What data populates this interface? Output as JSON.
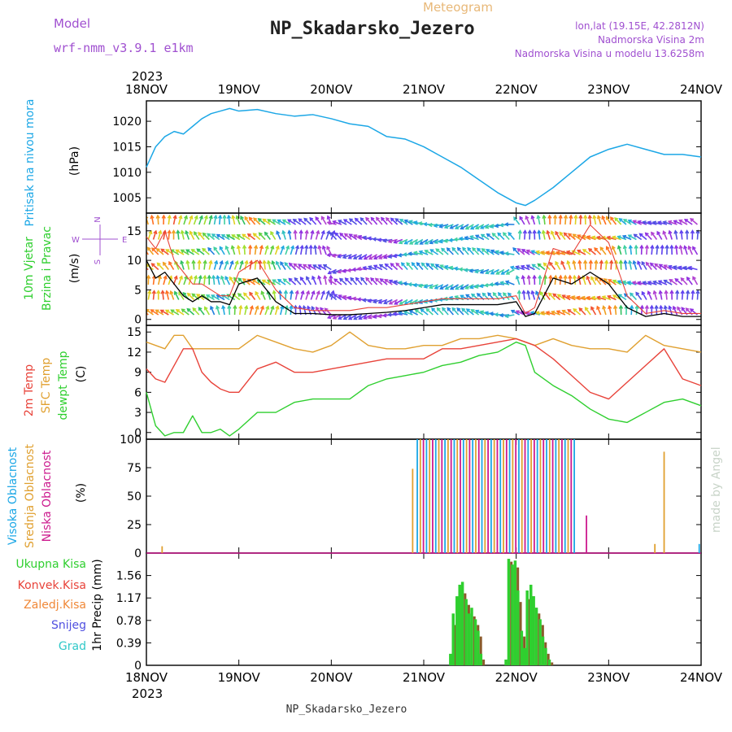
{
  "header": {
    "model_label": "Model",
    "model_name": "wrf-nmm_v3.9.1 e1km",
    "meteogram_label": "Meteogram",
    "station": "NP_Skadarsko_Jezero",
    "lonlat": "lon,lat (19.15E, 42.2812N)",
    "elev": "Nadmorska Visina 2m",
    "elev_model": "Nadmorska Visina u modelu 13.6258m",
    "credit": "made by Angel",
    "footer_station": "NP_Skadarsko_Jezero",
    "year_top": "2023",
    "year_bottom": "2023"
  },
  "colors": {
    "pressure": "#1ca7e6",
    "temp2m": "#e8433a",
    "sfc": "#e0a030",
    "dew": "#2fcf2f",
    "high_cloud": "#1ca7e6",
    "mid_cloud": "#e0a030",
    "low_cloud": "#cc1a8e",
    "total_precip": "#2fcf2f",
    "conv_precip": "#e8433a",
    "wind_speed": "#000000",
    "wind_gust": "#e8433a",
    "axis": "#000000"
  },
  "chart_data": [
    {
      "type": "line",
      "panel": "pressure",
      "ylabel_lines": [
        "Pritisak na nivou mora"
      ],
      "unit": "(hPa)",
      "x_ticks": [
        "18NOV",
        "19NOV",
        "20NOV",
        "21NOV",
        "22NOV",
        "23NOV",
        "24NOV"
      ],
      "ylim": [
        1002,
        1024
      ],
      "yticks": [
        1005,
        1010,
        1015,
        1020
      ],
      "x_days": [
        0,
        0.1,
        0.2,
        0.3,
        0.4,
        0.5,
        0.6,
        0.7,
        0.8,
        0.9,
        1.0,
        1.2,
        1.4,
        1.6,
        1.8,
        2.0,
        2.2,
        2.4,
        2.6,
        2.8,
        3.0,
        3.2,
        3.4,
        3.6,
        3.8,
        4.0,
        4.1,
        4.2,
        4.4,
        4.6,
        4.8,
        5.0,
        5.2,
        5.4,
        5.6,
        5.8,
        6.0
      ],
      "series": [
        {
          "values": [
            1011,
            1015,
            1017,
            1018,
            1017.5,
            1019,
            1020.5,
            1021.5,
            1022,
            1022.5,
            1022,
            1022.3,
            1021.5,
            1021,
            1021.3,
            1020.5,
            1019.5,
            1019,
            1017,
            1016.5,
            1015,
            1013,
            1011,
            1008.5,
            1006,
            1004,
            1003.5,
            1004.5,
            1007,
            1010,
            1013,
            1014.5,
            1015.5,
            1014.5,
            1013.5,
            1013.5,
            1013
          ]
        }
      ]
    },
    {
      "type": "line",
      "panel": "wind",
      "ylabel_lines": [
        "10m Vjetar",
        "Brzina i Pravac"
      ],
      "unit": "(m/s)",
      "compass": {
        "n": "N",
        "s": "S",
        "e": "E",
        "w": "W"
      },
      "ylim": [
        -1,
        18
      ],
      "yticks": [
        0,
        5,
        10,
        15
      ],
      "x_days": [
        0,
        0.1,
        0.2,
        0.3,
        0.4,
        0.5,
        0.6,
        0.7,
        0.8,
        0.9,
        1.0,
        1.2,
        1.4,
        1.6,
        1.8,
        2.0,
        2.2,
        2.4,
        2.6,
        2.8,
        3.0,
        3.2,
        3.4,
        3.6,
        3.8,
        4.0,
        4.1,
        4.2,
        4.4,
        4.6,
        4.8,
        5.0,
        5.2,
        5.4,
        5.6,
        5.8,
        6.0
      ],
      "series": [
        {
          "values": [
            10,
            7,
            8,
            6,
            4,
            3,
            4,
            3,
            3,
            2.5,
            6,
            7,
            3,
            1,
            1,
            0.8,
            0.8,
            1,
            1.2,
            1.5,
            2,
            2.5,
            2.5,
            2.5,
            2.5,
            3,
            0.5,
            1,
            7,
            6,
            8,
            6,
            2,
            0.5,
            1,
            0.5,
            0.5
          ]
        },
        {
          "values": [
            14,
            12,
            15,
            10,
            8,
            6,
            6,
            5,
            4,
            4,
            8,
            10,
            5,
            2,
            1.5,
            1.5,
            1.5,
            2,
            2,
            2.5,
            3,
            3.5,
            3.5,
            3.5,
            3.5,
            4,
            1,
            2,
            12,
            11,
            16,
            13,
            4,
            1,
            1.5,
            1,
            1
          ]
        }
      ]
    },
    {
      "type": "line",
      "panel": "temperature",
      "ylabel_lines": [
        "2m Temp",
        "SFC Temp",
        "dewpt Temp"
      ],
      "unit": "(C)",
      "ylim": [
        -1,
        16
      ],
      "yticks": [
        0,
        3,
        6,
        9,
        12,
        15
      ],
      "x_days": [
        0,
        0.1,
        0.2,
        0.3,
        0.4,
        0.5,
        0.6,
        0.7,
        0.8,
        0.9,
        1.0,
        1.2,
        1.4,
        1.6,
        1.8,
        2.0,
        2.2,
        2.4,
        2.6,
        2.8,
        3.0,
        3.2,
        3.4,
        3.6,
        3.8,
        4.0,
        4.1,
        4.2,
        4.4,
        4.6,
        4.8,
        5.0,
        5.2,
        5.4,
        5.6,
        5.8,
        6.0
      ],
      "series": [
        {
          "name": "2m Temp",
          "values": [
            9.5,
            8,
            7.5,
            10,
            12.5,
            12.5,
            9,
            7.5,
            6.5,
            6,
            6,
            9.5,
            10.5,
            9,
            9,
            9.5,
            10,
            10.5,
            11,
            11,
            11,
            12.5,
            12.5,
            13,
            13.5,
            14,
            13.5,
            13,
            11,
            8.5,
            6,
            5,
            7.5,
            10,
            12.5,
            8,
            7
          ]
        },
        {
          "name": "SFC Temp",
          "values": [
            13.5,
            13,
            12.5,
            14.5,
            14.5,
            12.5,
            12.5,
            12.5,
            12.5,
            12.5,
            12.5,
            14.5,
            13.5,
            12.5,
            12,
            13,
            15,
            13,
            12.5,
            12.5,
            13,
            13,
            14,
            14,
            14.5,
            14,
            13.5,
            13,
            14,
            13,
            12.5,
            12.5,
            12,
            14.5,
            13,
            12.5,
            12
          ]
        },
        {
          "name": "dewpt Temp",
          "values": [
            6,
            1,
            -0.5,
            0,
            0,
            2.5,
            0,
            0,
            0.5,
            -0.5,
            0.5,
            3,
            3,
            4.5,
            5,
            5,
            5,
            7,
            8,
            8.5,
            9,
            10,
            10.5,
            11.5,
            12,
            13.5,
            13,
            9,
            7,
            5.5,
            3.5,
            2,
            1.5,
            3,
            4.5,
            5,
            4
          ]
        }
      ]
    },
    {
      "type": "bar",
      "panel": "cloud",
      "ylabel_lines": [
        "Visoka Oblacnost",
        "Srednja Oblacnost",
        "Niska Oblacnost"
      ],
      "unit": "(%)",
      "ylim": [
        0,
        100
      ],
      "yticks": [
        0,
        25,
        50,
        75,
        100
      ],
      "cloud_days_start": 2.93,
      "cloud_days_end": 4.65,
      "cloud_step": 0.0333,
      "extra_bars": [
        {
          "d": 0.17,
          "v": 6,
          "layer": "mid"
        },
        {
          "d": 2.88,
          "v": 74,
          "layer": "mid"
        },
        {
          "d": 4.76,
          "v": 33,
          "layer": "low"
        },
        {
          "d": 5.6,
          "v": 89,
          "layer": "mid"
        },
        {
          "d": 5.5,
          "v": 8,
          "layer": "mid"
        },
        {
          "d": 5.98,
          "v": 8,
          "layer": "high"
        }
      ]
    },
    {
      "type": "bar",
      "panel": "precip",
      "legend": [
        "Ukupna Kisa",
        "Konvek.Kisa",
        "Zaledj.Kisa",
        "Snijeg",
        "Grad"
      ],
      "ylabel_lines": [
        "1hr Precip (mm)"
      ],
      "ylim": [
        0,
        1.95
      ],
      "yticks": [
        0,
        0.39,
        0.78,
        1.17,
        1.56
      ],
      "x_days": [
        3.3,
        3.33,
        3.37,
        3.4,
        3.43,
        3.47,
        3.5,
        3.53,
        3.57,
        3.6,
        3.63,
        3.67,
        3.9,
        3.93,
        3.97,
        4.0,
        4.03,
        4.07,
        4.1,
        4.13,
        4.17,
        4.2,
        4.23,
        4.27,
        4.3,
        4.33,
        4.37,
        4.4
      ],
      "series": [
        {
          "name": "Ukupna Kisa",
          "values": [
            0.2,
            0.9,
            1.2,
            1.4,
            1.45,
            1.15,
            0.9,
            1.0,
            0.8,
            0.6,
            0.2,
            0,
            0.1,
            1.85,
            1.75,
            1.82,
            1.3,
            0.6,
            0.3,
            1.3,
            1.4,
            1.2,
            1.0,
            0.8,
            0.5,
            0.3,
            0.1,
            0
          ]
        },
        {
          "name": "Konvek.Kisa",
          "values": [
            0.1,
            0.7,
            1.0,
            1.2,
            1.25,
            1.05,
            0.75,
            0.85,
            0.7,
            0.5,
            0.1,
            0,
            0.1,
            1.8,
            1.7,
            1.7,
            1.1,
            0.5,
            0.25,
            1.15,
            1.2,
            1.0,
            0.9,
            0.7,
            0.4,
            0.2,
            0.05,
            0
          ]
        }
      ]
    }
  ]
}
